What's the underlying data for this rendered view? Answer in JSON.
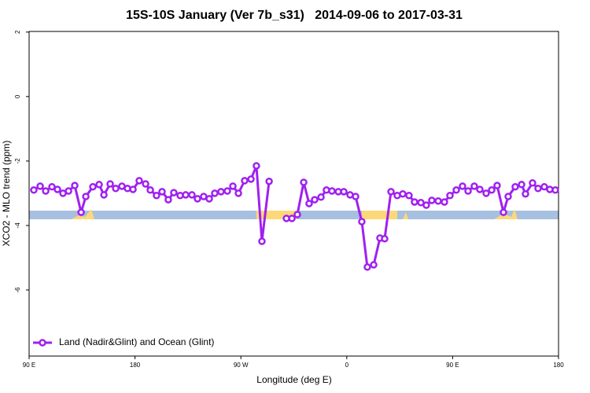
{
  "chart_data": {
    "type": "line",
    "title": "15S-10S January (Ver 7b_s31)   2014-09-06 to 2017-03-31",
    "x_label": "Longitude (deg E)",
    "y_label": "XCO2 - MLO trend (ppm)",
    "xlim": [
      90,
      540
    ],
    "ylim": [
      -8.05,
      2.02
    ],
    "xticks": [
      {
        "value": 90,
        "label": "90 E"
      },
      180,
      {
        "value": 270,
        "label": "90 W"
      },
      {
        "value": 360,
        "label": "0"
      },
      {
        "value": 450,
        "label": "90 E"
      },
      {
        "value": 540,
        "label": "180"
      }
    ],
    "yticks": [
      2,
      0,
      -2,
      -4,
      -6
    ],
    "legend": "bottom-left",
    "x": [
      94.0,
      99.4,
      104.1,
      109.4,
      114.1,
      118.8,
      123.5,
      128.8,
      134.2,
      138.2,
      144.2,
      149.5,
      153.6,
      158.9,
      163.6,
      168.9,
      173.6,
      178.3,
      183.6,
      189.0,
      193.0,
      198.3,
      203.0,
      208.3,
      213.0,
      218.4,
      223.1,
      228.4,
      233.1,
      238.4,
      243.1,
      247.8,
      253.1,
      258.5,
      263.2,
      267.9,
      273.2,
      278.6,
      283.2,
      287.9,
      294.0,
      301.0,
      308.7,
      313.4,
      318.0,
      323.4,
      328.0,
      332.7,
      338.1,
      342.7,
      347.4,
      352.8,
      357.5,
      362.8,
      367.5,
      372.8,
      377.5,
      382.9,
      388.2,
      392.2,
      397.6,
      402.9,
      407.6,
      412.9,
      417.6,
      423.0,
      427.6,
      432.3,
      437.7,
      443.0,
      447.7,
      453.1,
      458.4,
      463.1,
      468.4,
      473.1,
      478.5,
      483.2,
      487.8,
      493.2,
      497.2,
      503.2,
      508.6,
      511.9,
      517.9,
      522.6,
      527.9,
      532.6,
      537.3
    ],
    "series": [
      {
        "name": "Land (Nadir&Glint) and Ocean (Glint)",
        "color": "#a020f0",
        "values": [
          -2.9,
          -2.78,
          -2.93,
          -2.8,
          -2.88,
          -3.0,
          -2.93,
          -2.76,
          -3.59,
          -3.1,
          -2.8,
          -2.73,
          -3.05,
          -2.71,
          -2.85,
          -2.78,
          -2.85,
          -2.88,
          -2.61,
          -2.71,
          -2.9,
          -3.07,
          -2.95,
          -3.2,
          -2.98,
          -3.07,
          -3.05,
          -3.05,
          -3.17,
          -3.1,
          -3.17,
          -3.0,
          -2.95,
          -2.93,
          -2.78,
          -3.0,
          -2.61,
          -2.56,
          -2.15,
          -4.49,
          -2.63,
          null,
          -3.78,
          -3.78,
          -3.66,
          -2.66,
          -3.32,
          -3.2,
          -3.12,
          -2.9,
          -2.93,
          -2.95,
          -2.95,
          -3.05,
          -3.1,
          -3.88,
          -5.29,
          -5.22,
          -4.39,
          -4.41,
          -2.95,
          -3.07,
          -3.02,
          -3.07,
          -3.27,
          -3.29,
          -3.37,
          -3.22,
          -3.24,
          -3.27,
          -3.07,
          -2.9,
          -2.78,
          -2.93,
          -2.78,
          -2.88,
          -3.0,
          -2.9,
          -2.76,
          -3.59,
          -3.1,
          -2.8,
          -2.73,
          -3.02,
          -2.68,
          -2.85,
          -2.8,
          -2.88,
          -2.9
        ]
      }
    ]
  }
}
